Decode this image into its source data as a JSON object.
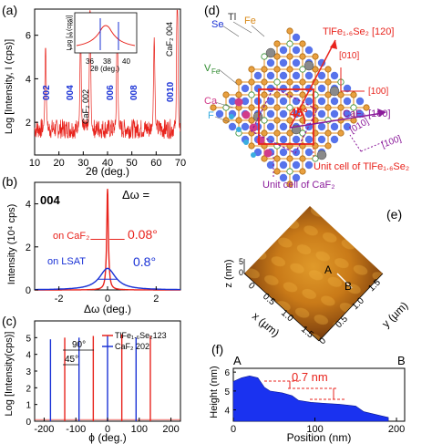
{
  "panels": {
    "a": {
      "letter": "(a)",
      "ylabel": "Log [Intensity, I (cps)]",
      "xlabel": "2θ (deg.)",
      "yticks": [
        "2",
        "4",
        "6"
      ],
      "xticks": [
        "10",
        "20",
        "30",
        "40",
        "50",
        "60",
        "70"
      ],
      "peak_labels": [
        "002",
        "004",
        "006",
        "008",
        "0010"
      ],
      "substrate_labels": [
        "CaF₂ 002",
        "CaF₂ 004"
      ],
      "inset": {
        "ylabel": "Log [ I (cps)]",
        "xlabel": "2θ (deg.)",
        "xticks": [
          "36",
          "38",
          "40"
        ],
        "yticks": [
          "1",
          "2",
          "3"
        ]
      }
    },
    "b": {
      "letter": "(b)",
      "reflection": "004",
      "ylabel": "Intensity (10⁴ cps)",
      "xlabel": "Δω (deg.)",
      "yticks": [
        "0",
        "2",
        "4"
      ],
      "xticks": [
        "-2",
        "0",
        "2"
      ],
      "delta_label": "Δω =",
      "caf2_label": "on CaF₂",
      "caf2_value": "0.08°",
      "lsat_label": "on LSAT",
      "lsat_value": "0.8°"
    },
    "c": {
      "letter": "(c)",
      "ylabel": "Log [Intensity(cps)]",
      "xlabel": "ϕ (deg.)",
      "yticks": [
        "0",
        "1",
        "2",
        "3",
        "4",
        "5"
      ],
      "xticks": [
        "-200",
        "-100",
        "0",
        "100",
        "200"
      ],
      "angle_90": "90°",
      "angle_45": "45°",
      "legend": [
        "TlFe₁.₆Se₂123",
        "CaF₂ 202"
      ]
    },
    "d": {
      "letter": "(d)",
      "atoms": [
        "Se",
        "Tl",
        "Fe",
        "V",
        "Ca",
        "F"
      ],
      "vfe_sub": "Fe",
      "dir_film": "TlFe₁.₆Se₂ [120]",
      "dir_film_010": "[010]",
      "dir_film_100": "[100]",
      "dir_caf2": "CaF₂ [100]",
      "dir_caf2_010": "[010]",
      "dir_caf2_100": "[100]",
      "angle": "45°",
      "unit_cell_film": "Unit cell of TlFe₁.₆Se₂",
      "unit_cell_caf2": "Unit cell of CaF₂"
    },
    "e": {
      "letter": "(e)",
      "z_label": "z (nm)",
      "z_ticks": [
        "0",
        "5"
      ],
      "x_label": "x (µm)",
      "x_ticks": [
        "0",
        "0.5",
        "1.0",
        "1.5"
      ],
      "y_label": "y (µm)",
      "y_ticks": [
        "0",
        "0.5",
        "1.0",
        "1.5"
      ],
      "point_a": "A",
      "point_b": "B"
    },
    "f": {
      "letter": "(f)",
      "ylabel": "Height (nm)",
      "xlabel": "Position (nm)",
      "yticks": [
        "4",
        "5",
        "6"
      ],
      "xticks": [
        "0",
        "100",
        "200"
      ],
      "step_label": "0.7 nm",
      "point_a": "A",
      "point_b": "B"
    }
  },
  "colors": {
    "film": "#e8231c",
    "substrate": "#1a32d6",
    "caf2_annot": "#8a1a9a"
  },
  "chart_data": [
    {
      "type": "line",
      "panel": "a",
      "xlabel": "2θ (deg.)",
      "ylabel": "Log [Intensity, I (cps)]",
      "xlim": [
        10,
        70
      ],
      "ylim": [
        0.5,
        7.2
      ],
      "peaks": [
        {
          "x": 14.5,
          "y": 3.4
        },
        {
          "x": 28.9,
          "y": 4.0
        },
        {
          "x": 32.8,
          "y": 5.6
        },
        {
          "x": 44.0,
          "y": 4.5
        },
        {
          "x": 59.2,
          "y": 3.8
        },
        {
          "x": 68.7,
          "y": 7.0
        }
      ]
    },
    {
      "type": "line",
      "panel": "b",
      "xlabel": "Δω (deg.)",
      "ylabel": "Intensity (10⁴ cps)",
      "xlim": [
        -3,
        3
      ],
      "ylim": [
        0,
        5
      ],
      "series": [
        {
          "name": "on CaF₂",
          "center": 0,
          "fwhm": 0.08,
          "height": 4.7
        },
        {
          "name": "on LSAT",
          "center": 0,
          "fwhm": 0.8,
          "height": 1.0
        }
      ]
    },
    {
      "type": "bar",
      "panel": "c",
      "xlabel": "ϕ (deg.)",
      "ylabel": "Log [Intensity(cps)]",
      "xlim": [
        -230,
        230
      ],
      "ylim": [
        0,
        6
      ],
      "series": [
        {
          "name": "TlFe₁.₆Se₂123",
          "x": [
            -135,
            -45,
            45,
            135
          ],
          "values": [
            5.0,
            5.1,
            5.2,
            5.1
          ]
        },
        {
          "name": "CaF₂ 202",
          "x": [
            -180,
            -90,
            0,
            90
          ],
          "values": [
            4.9,
            5.0,
            5.1,
            5.0
          ]
        }
      ]
    },
    {
      "type": "area",
      "panel": "f",
      "xlabel": "Position (nm)",
      "ylabel": "Height (nm)",
      "xlim": [
        0,
        210
      ],
      "ylim": [
        3.4,
        6.2
      ],
      "x": [
        0,
        10,
        20,
        30,
        38,
        45,
        60,
        72,
        80,
        95,
        110,
        130,
        150,
        160,
        170,
        180,
        190
      ],
      "values": [
        5.5,
        5.7,
        5.8,
        5.7,
        5.2,
        5.0,
        4.9,
        4.75,
        4.5,
        4.4,
        4.35,
        4.3,
        4.2,
        3.9,
        3.8,
        3.7,
        3.6
      ]
    }
  ]
}
